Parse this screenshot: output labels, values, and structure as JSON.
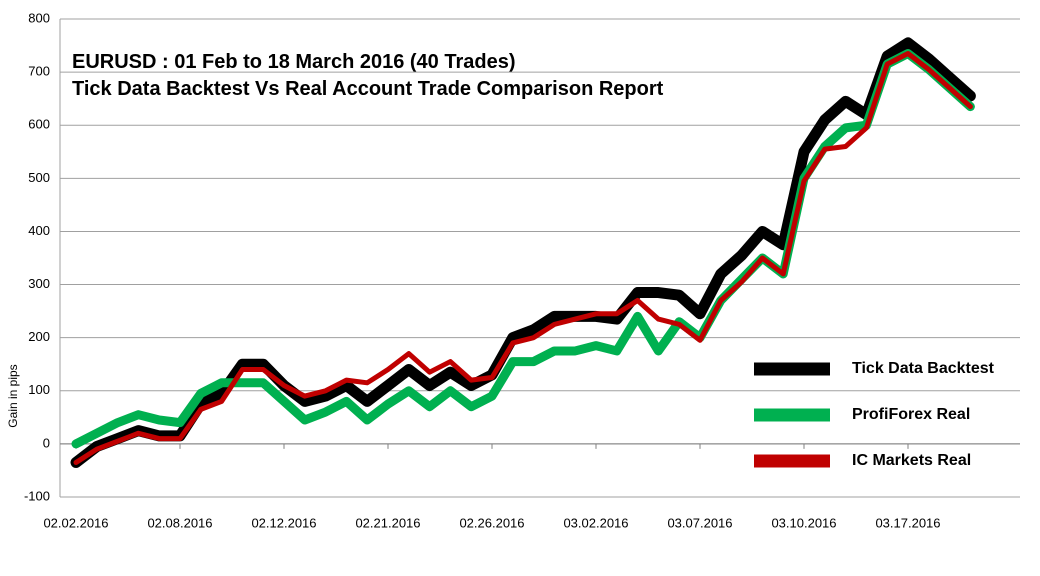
{
  "chart_data": {
    "type": "line",
    "title": "EURUSD : 01 Feb to 18 March 2016 (40 Trades)",
    "subtitle": "Tick Data Backtest Vs Real Account Trade Comparison Report",
    "y_label": "Gain in pips",
    "categories": [
      "02.02.2016",
      null,
      null,
      null,
      null,
      "02.08.2016",
      null,
      null,
      null,
      null,
      "02.12.2016",
      null,
      null,
      null,
      null,
      "02.21.2016",
      null,
      null,
      null,
      null,
      "02.26.2016",
      null,
      null,
      null,
      null,
      "03.02.2016",
      null,
      null,
      null,
      null,
      "03.07.2016",
      null,
      null,
      null,
      null,
      "03.10.2016",
      null,
      null,
      null,
      null,
      "03.17.2016",
      null,
      null,
      null
    ],
    "series": [
      {
        "name": "Tick Data Backtest",
        "color": "#000000",
        "values": [
          -35,
          -5,
          10,
          25,
          15,
          15,
          75,
          95,
          150,
          150,
          110,
          80,
          90,
          110,
          80,
          110,
          140,
          110,
          135,
          110,
          130,
          200,
          215,
          240,
          240,
          240,
          235,
          285,
          285,
          280,
          245,
          320,
          355,
          400,
          375,
          550,
          610,
          645,
          620,
          730,
          755,
          725,
          690,
          655
        ]
      },
      {
        "name": "ProfiForex Real",
        "color": "#00b050",
        "values": [
          0,
          20,
          40,
          55,
          45,
          40,
          95,
          115,
          115,
          115,
          80,
          45,
          60,
          80,
          45,
          75,
          100,
          70,
          100,
          70,
          90,
          155,
          155,
          175,
          175,
          185,
          175,
          240,
          175,
          230,
          200,
          270,
          310,
          350,
          320,
          500,
          560,
          595,
          600,
          715,
          735,
          705,
          670,
          635
        ]
      },
      {
        "name": "IC Markets Real",
        "color": "#c00000",
        "values": [
          -35,
          -10,
          5,
          20,
          10,
          10,
          65,
          80,
          140,
          140,
          110,
          90,
          100,
          120,
          115,
          140,
          170,
          135,
          155,
          120,
          125,
          190,
          200,
          225,
          235,
          245,
          245,
          270,
          235,
          225,
          195,
          270,
          305,
          350,
          320,
          495,
          555,
          560,
          595,
          715,
          735,
          705,
          670,
          635
        ]
      }
    ],
    "ylim": [
      -100,
      800
    ],
    "yticks": [
      -100,
      0,
      100,
      200,
      300,
      400,
      500,
      600,
      700,
      800
    ],
    "grid": true
  }
}
